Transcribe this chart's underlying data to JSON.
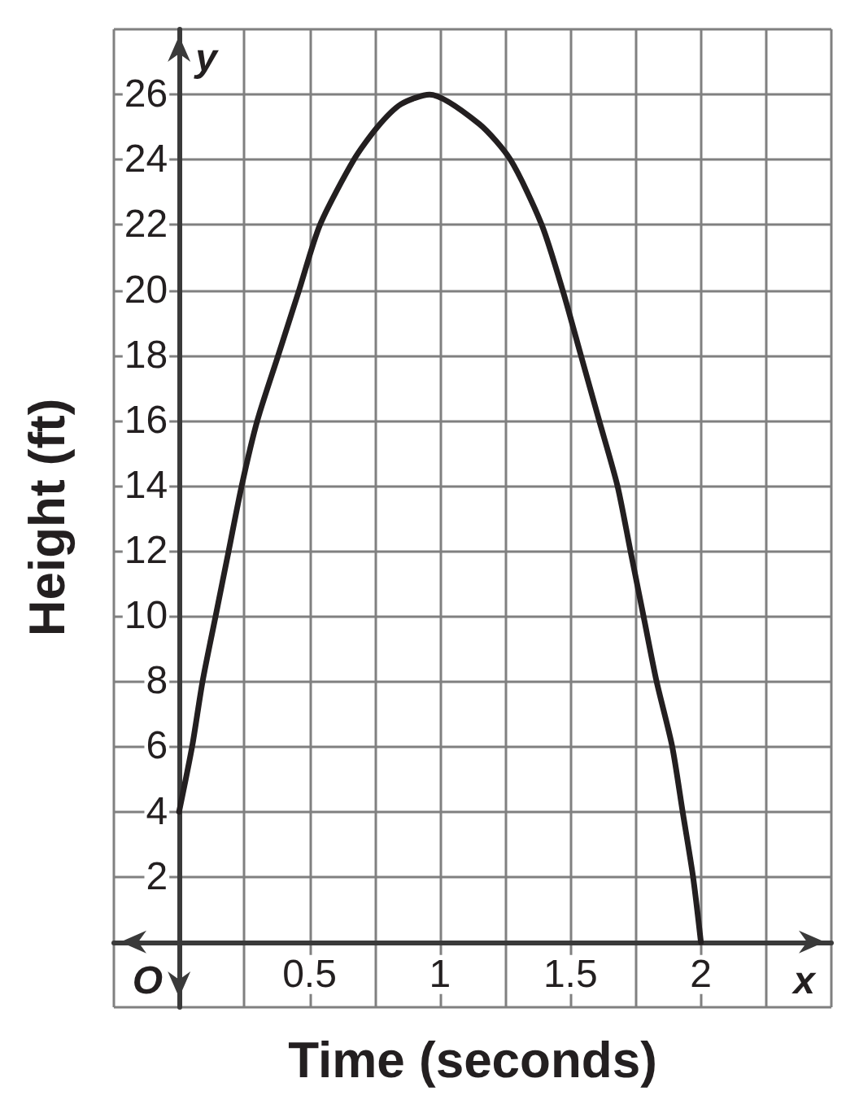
{
  "chart_data": {
    "type": "line",
    "xlabel": "Time (seconds)",
    "ylabel": "Height (ft)",
    "x": [
      0,
      0.05,
      0.09,
      0.14,
      0.19,
      0.24,
      0.3,
      0.38,
      0.46,
      0.54,
      0.67,
      0.76,
      0.85,
      0.96,
      1.15,
      1.27,
      1.39,
      1.47,
      1.54,
      1.61,
      1.68,
      1.73,
      1.78,
      1.83,
      1.89,
      1.93,
      1.97,
      2
    ],
    "values": [
      4,
      6,
      8,
      10,
      12,
      14,
      16,
      18,
      20,
      22,
      24,
      25,
      25.7,
      26,
      25.1,
      24,
      22,
      20,
      18,
      16,
      14,
      12,
      10,
      8,
      6,
      4,
      2,
      0
    ],
    "color": "#231f20",
    "xlim": [
      -0.25,
      2.5
    ],
    "ylim": [
      -2,
      28
    ],
    "xticks": [
      {
        "value": -0.25,
        "label": null
      },
      {
        "value": 0,
        "label": null
      },
      {
        "value": 0.25,
        "label": null
      },
      0.5,
      {
        "value": 0.75,
        "label": null
      },
      1,
      {
        "value": 1.25,
        "label": null
      },
      1.5,
      {
        "value": 1.75,
        "label": null
      },
      2,
      {
        "value": 2.25,
        "label": null
      },
      {
        "value": 2.5,
        "label": null
      }
    ],
    "yticks": [
      {
        "value": -2,
        "label": null
      },
      {
        "value": 0,
        "label": null
      },
      2,
      4,
      6,
      8,
      10,
      12,
      14,
      16,
      18,
      20,
      22,
      24,
      26,
      {
        "value": 28,
        "label": null
      }
    ],
    "grid": true,
    "marker": "none",
    "annotations": [
      "O",
      "y",
      "x"
    ]
  }
}
